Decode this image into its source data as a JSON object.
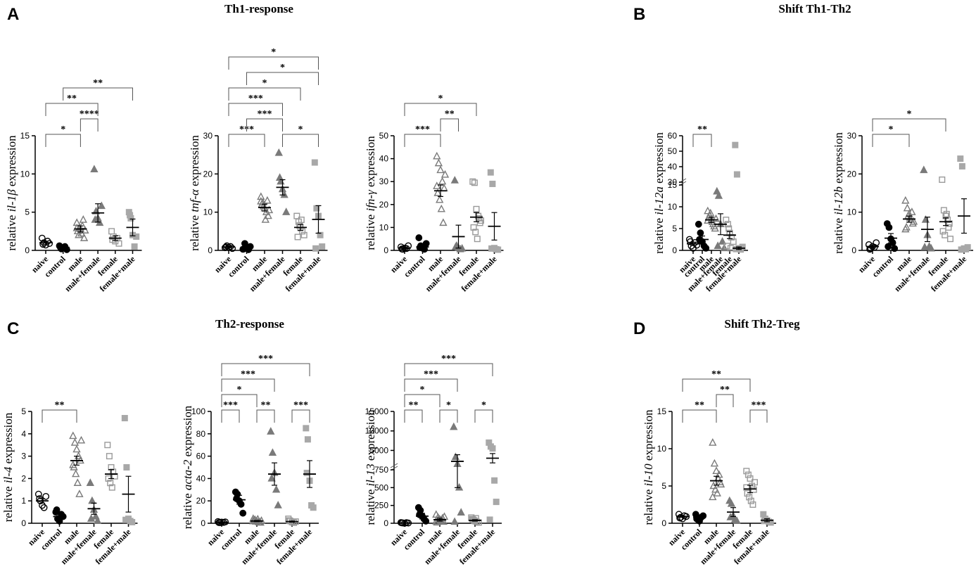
{
  "panel_labels": {
    "A": "A",
    "B": "B",
    "C": "C",
    "D": "D"
  },
  "titles": {
    "A": "Th1-response",
    "B": "Shift Th1-Th2",
    "C": "Th2-response",
    "D": "Shift Th2-Treg"
  },
  "chart_data": [
    {
      "id": "il1b",
      "type": "scatter",
      "ylabel": {
        "pre": "relative ",
        "gene": "il-1β",
        "post": " expression"
      },
      "categories": [
        "naive",
        "control",
        "male",
        "male+female",
        "female",
        "female+male"
      ],
      "ylim": [
        0,
        15
      ],
      "yticks": [
        0,
        5,
        10,
        15
      ],
      "means": [
        1.0,
        0.4,
        2.8,
        4.9,
        1.6,
        3.0
      ],
      "sems": [
        0.2,
        0.15,
        0.4,
        1.2,
        0.3,
        1.1
      ],
      "points": [
        [
          1.6,
          1.0,
          0.7,
          1.2,
          0.9,
          0.8
        ],
        [
          0.6,
          0.2,
          0.3,
          0.5,
          0.1,
          0.4
        ],
        [
          3.6,
          2.0,
          2.8,
          3.2,
          1.6,
          2.5,
          3.0,
          2.2,
          4.0,
          2.6,
          2.9
        ],
        [
          10.6,
          5.1,
          4.2,
          3.6,
          5.8,
          4.0
        ],
        [
          2.5,
          1.8,
          1.2,
          1.6,
          0.9,
          1.4
        ],
        [
          5.0,
          4.2,
          2.0,
          0.5,
          1.8,
          4.6
        ]
      ],
      "significance": [
        {
          "from": 0,
          "to": 2,
          "label": "*"
        },
        {
          "from": 2,
          "to": 3,
          "label": "****"
        },
        {
          "from": 0,
          "to": 3,
          "label": "**"
        },
        {
          "from": 1,
          "to": 5,
          "label": "**"
        }
      ]
    },
    {
      "id": "tnfa",
      "type": "scatter",
      "ylabel": {
        "pre": "relative ",
        "gene": "tnf-α",
        "post": " expression"
      },
      "categories": [
        "naive",
        "control",
        "male",
        "male+female",
        "female",
        "female+male"
      ],
      "ylim": [
        0,
        30
      ],
      "yticks": [
        0,
        10,
        20,
        30
      ],
      "means": [
        0.9,
        0.8,
        11.2,
        16.5,
        6.0,
        8.1
      ],
      "sems": [
        0.2,
        0.4,
        0.9,
        2.0,
        0.8,
        3.6
      ],
      "points": [
        [
          0.7,
          1.2,
          0.8,
          1.0,
          0.5,
          0.9
        ],
        [
          0.3,
          1.8,
          0.6,
          0.2,
          1.0,
          0.4
        ],
        [
          14.0,
          12.5,
          11.0,
          10.0,
          9.0,
          12.0,
          11.5,
          8.0,
          13.0,
          10.5,
          12.8
        ],
        [
          25.5,
          18.0,
          16.0,
          14.5,
          10.0,
          19.0
        ],
        [
          9.0,
          7.5,
          6.0,
          5.0,
          4.0,
          3.5,
          6.5,
          8.0
        ],
        [
          23.0,
          11.0,
          9.0,
          4.0,
          1.0,
          0.5
        ]
      ],
      "significance": [
        {
          "from": 0,
          "to": 2,
          "label": "***"
        },
        {
          "from": 3,
          "to": 5,
          "label": "*"
        },
        {
          "from": 1,
          "to": 3,
          "label": "***"
        },
        {
          "from": 0,
          "to": 3,
          "label": "***"
        },
        {
          "from": 0,
          "to": 4,
          "label": "*"
        },
        {
          "from": 1,
          "to": 5,
          "label": "*"
        },
        {
          "from": 0,
          "to": 5,
          "label": "*"
        }
      ]
    },
    {
      "id": "ifng",
      "type": "scatter",
      "ylabel": {
        "pre": "relative ",
        "gene": "ifn-γ",
        "post": " expression"
      },
      "categories": [
        "naive",
        "control",
        "male",
        "male+female",
        "female",
        "female+male"
      ],
      "ylim": [
        0,
        50
      ],
      "yticks": [
        0,
        10,
        20,
        30,
        40,
        50
      ],
      "means": [
        1.0,
        1.5,
        26.0,
        6.0,
        14.5,
        10.5
      ],
      "sems": [
        0.3,
        0.6,
        2.5,
        5.0,
        2.0,
        6.0
      ],
      "points": [
        [
          1.5,
          0.5,
          1.0,
          0.8,
          2.0,
          0.6
        ],
        [
          5.5,
          2.0,
          1.0,
          0.5,
          3.0,
          1.2
        ],
        [
          41.0,
          38.0,
          35.0,
          30.0,
          27.0,
          25.0,
          22.0,
          18.0,
          12.0,
          33.0,
          28.0
        ],
        [
          30.5,
          2.0,
          1.0,
          0.5,
          0.8,
          1.5
        ],
        [
          30.0,
          29.5,
          18.0,
          15.0,
          12.0,
          10.0,
          8.0,
          5.0,
          14.0,
          13.0
        ],
        [
          34.0,
          29.0,
          1.0,
          0.5,
          0.3,
          0.8
        ]
      ],
      "significance": [
        {
          "from": 0,
          "to": 2,
          "label": "***"
        },
        {
          "from": 2,
          "to": 3,
          "label": "**"
        },
        {
          "from": 0,
          "to": 4,
          "label": "*"
        }
      ]
    },
    {
      "id": "il12a",
      "type": "scatter",
      "ylabel": {
        "pre": "relative ",
        "gene": "il-12a",
        "post": " expression"
      },
      "categories": [
        "naive",
        "control",
        "male",
        "male+female",
        "female",
        "female+male"
      ],
      "broken_axis": {
        "lower": [
          0,
          15
        ],
        "upper": [
          30,
          60
        ]
      },
      "yticks": [
        0,
        5,
        10,
        15,
        30,
        40,
        50,
        60
      ],
      "means": [
        1.5,
        2.5,
        7.0,
        6.0,
        3.5,
        0.5
      ],
      "sems": [
        0.4,
        0.8,
        0.6,
        2.4,
        0.8,
        0.3
      ],
      "points": [
        [
          2.5,
          1.0,
          0.5,
          1.8,
          1.2,
          2.0
        ],
        [
          6.0,
          4.0,
          2.0,
          1.0,
          0.5,
          2.5
        ],
        [
          9.0,
          8.0,
          7.0,
          6.0,
          5.0,
          7.5,
          8.5,
          6.5,
          5.5,
          7.2,
          6.8
        ],
        [
          13.5,
          12.5,
          6.0,
          2.0,
          0.5,
          1.0
        ],
        [
          7.0,
          6.0,
          4.0,
          3.0,
          2.0,
          1.0,
          5.0,
          0.5
        ],
        [
          54.0,
          35.0,
          0.5,
          0.2,
          0.8,
          0.3
        ]
      ],
      "significance": [
        {
          "from": 0,
          "to": 2,
          "label": "**"
        }
      ]
    },
    {
      "id": "il12b",
      "type": "scatter",
      "ylabel": {
        "pre": "relative ",
        "gene": "il-12b",
        "post": " expression"
      },
      "categories": [
        "naive",
        "control",
        "male",
        "male+female",
        "female",
        "female+male"
      ],
      "ylim": [
        0,
        30
      ],
      "yticks": [
        0,
        10,
        20,
        30
      ],
      "means": [
        1.0,
        3.2,
        8.2,
        5.5,
        7.5,
        9.0
      ],
      "sems": [
        0.3,
        1.2,
        0.8,
        3.2,
        1.0,
        4.5
      ],
      "points": [
        [
          1.5,
          0.5,
          1.0,
          0.8,
          2.0,
          0.3
        ],
        [
          7.0,
          6.0,
          3.0,
          2.0,
          0.5,
          1.0
        ],
        [
          13.0,
          11.0,
          9.5,
          8.0,
          7.0,
          6.0,
          9.0,
          8.5,
          10.0,
          7.5,
          5.5
        ],
        [
          21.0,
          8.0,
          4.0,
          1.0,
          0.5,
          0.8
        ],
        [
          18.5,
          10.5,
          9.0,
          8.0,
          7.0,
          5.0,
          4.0,
          9.5,
          6.0,
          3.0
        ],
        [
          24.0,
          22.0,
          0.5,
          0.3,
          0.8,
          0.2
        ]
      ],
      "significance": [
        {
          "from": 0,
          "to": 2,
          "label": "*"
        },
        {
          "from": 0,
          "to": 4,
          "label": "*"
        }
      ]
    },
    {
      "id": "il4",
      "type": "scatter",
      "ylabel": {
        "pre": "relative ",
        "gene": "il-4",
        "post": " expression"
      },
      "categories": [
        "naive",
        "control",
        "male",
        "male+female",
        "female",
        "female+male"
      ],
      "ylim": [
        0,
        5
      ],
      "yticks": [
        0,
        1,
        2,
        3,
        4,
        5
      ],
      "means": [
        1.0,
        0.3,
        2.8,
        0.65,
        2.2,
        1.3
      ],
      "sems": [
        0.1,
        0.1,
        0.2,
        0.25,
        0.2,
        0.8
      ],
      "points": [
        [
          1.3,
          1.0,
          0.8,
          0.7,
          1.2,
          1.1
        ],
        [
          0.5,
          0.2,
          0.1,
          0.4,
          0.3,
          0.6
        ],
        [
          3.9,
          3.6,
          3.3,
          3.0,
          2.8,
          2.5,
          2.2,
          1.8,
          1.3,
          3.7,
          2.6
        ],
        [
          1.8,
          1.0,
          0.6,
          0.3,
          0.1,
          0.2
        ],
        [
          3.5,
          3.0,
          2.5,
          2.3,
          2.1,
          2.0,
          1.8,
          1.6
        ],
        [
          4.7,
          2.5,
          0.2,
          0.1,
          0.05,
          0.15
        ]
      ],
      "significance": [
        {
          "from": 0,
          "to": 2,
          "label": "**"
        }
      ]
    },
    {
      "id": "acta2",
      "type": "scatter",
      "ylabel": {
        "pre": "relative ",
        "gene": "acta-2",
        "post": " expression"
      },
      "categories": [
        "naive",
        "control",
        "male",
        "male+female",
        "female",
        "female+male"
      ],
      "ylim": [
        0,
        100
      ],
      "yticks": [
        0,
        20,
        40,
        60,
        80,
        100
      ],
      "means": [
        1.0,
        21.0,
        2.0,
        44.0,
        1.5,
        44.0
      ],
      "sems": [
        0.3,
        4.0,
        0.5,
        10.0,
        0.5,
        12.0
      ],
      "points": [
        [
          1.5,
          0.5,
          1.0,
          0.8,
          1.2,
          0.6
        ],
        [
          28.0,
          26.0,
          20.0,
          17.0,
          9.0,
          22.0
        ],
        [
          4.0,
          3.0,
          2.0,
          1.0,
          0.5,
          2.5,
          1.5,
          3.5,
          0.8,
          2.2,
          1.8
        ],
        [
          82.0,
          63.0,
          45.0,
          30.0,
          16.0,
          40.0
        ],
        [
          4.0,
          2.0,
          1.0,
          0.5,
          1.5,
          2.5
        ],
        [
          85.0,
          75.0,
          38.0,
          16.0,
          14.0,
          45.0
        ]
      ],
      "significance": [
        {
          "from": 0,
          "to": 1,
          "label": "***"
        },
        {
          "from": 2,
          "to": 3,
          "label": "**"
        },
        {
          "from": 4,
          "to": 5,
          "label": "***"
        },
        {
          "from": 0,
          "to": 2,
          "label": "*"
        },
        {
          "from": 0,
          "to": 3,
          "label": "***"
        },
        {
          "from": 0,
          "to": 5,
          "label": "***"
        }
      ]
    },
    {
      "id": "il13",
      "type": "scatter",
      "ylabel": {
        "pre": "relative ",
        "gene": "il-13",
        "post": " expression"
      },
      "categories": [
        "naive",
        "control",
        "male",
        "male+female",
        "female",
        "female+male"
      ],
      "broken_axis": {
        "lower": [
          0,
          750
        ],
        "upper": [
          750,
          15000
        ]
      },
      "yticks": [
        0,
        250,
        500,
        750,
        5000,
        10000,
        15000
      ],
      "means": [
        5,
        100,
        50,
        2200,
        40,
        3000
      ],
      "sems": [
        3,
        40,
        20,
        1700,
        10,
        1200
      ],
      "points": [
        [
          10,
          5,
          0,
          8,
          3,
          6
        ],
        [
          220,
          180,
          100,
          60,
          30,
          120
        ],
        [
          120,
          80,
          50,
          30,
          20,
          10,
          60,
          40,
          70,
          90,
          25
        ],
        [
          11000,
          3300,
          1500,
          500,
          150,
          20
        ],
        [
          80,
          50,
          30,
          20,
          10,
          60,
          40,
          70
        ],
        [
          7000,
          6000,
          5500,
          600,
          300,
          50
        ]
      ],
      "significance": [
        {
          "from": 0,
          "to": 1,
          "label": "**"
        },
        {
          "from": 2,
          "to": 3,
          "label": "*"
        },
        {
          "from": 4,
          "to": 5,
          "label": "*"
        },
        {
          "from": 0,
          "to": 2,
          "label": "*"
        },
        {
          "from": 0,
          "to": 3,
          "label": "***"
        },
        {
          "from": 0,
          "to": 5,
          "label": "***"
        }
      ]
    },
    {
      "id": "il10",
      "type": "scatter",
      "ylabel": {
        "pre": "relative ",
        "gene": "il-10",
        "post": " expression"
      },
      "categories": [
        "naive",
        "control",
        "male",
        "male+female",
        "female",
        "female+male"
      ],
      "ylim": [
        0,
        15
      ],
      "yticks": [
        0,
        5,
        10,
        15
      ],
      "means": [
        0.9,
        0.8,
        5.7,
        1.5,
        4.6,
        0.4
      ],
      "sems": [
        0.1,
        0.2,
        0.6,
        0.6,
        0.5,
        0.2
      ],
      "points": [
        [
          1.2,
          0.8,
          0.6,
          1.0,
          0.9,
          0.7
        ],
        [
          1.2,
          0.5,
          0.3,
          0.8,
          1.0,
          0.6
        ],
        [
          10.8,
          8.0,
          7.0,
          6.0,
          5.5,
          5.0,
          4.5,
          4.0,
          6.5,
          5.2,
          3.5
        ],
        [
          3.0,
          2.6,
          1.0,
          0.5,
          0.3,
          0.8
        ],
        [
          7.0,
          6.5,
          6.0,
          5.0,
          4.5,
          4.0,
          3.5,
          3.0,
          2.5,
          5.5,
          4.8
        ],
        [
          1.2,
          0.6,
          0.4,
          0.2,
          0.1,
          0.3
        ]
      ],
      "significance": [
        {
          "from": 0,
          "to": 2,
          "label": "**"
        },
        {
          "from": 2,
          "to": 3,
          "label": "**"
        },
        {
          "from": 4,
          "to": 5,
          "label": "***"
        },
        {
          "from": 0,
          "to": 4,
          "label": "**"
        }
      ]
    }
  ]
}
